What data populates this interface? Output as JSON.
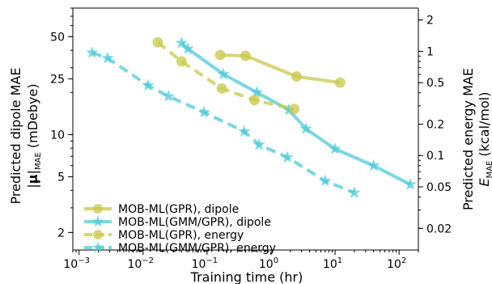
{
  "chart_data": {
    "type": "line",
    "xscale": "log",
    "yscale": "log",
    "xlim": [
      0.0008,
      200
    ],
    "ylim": [
      1.5,
      80
    ],
    "y2lim": [
      0.0124,
      2.6
    ],
    "xlabel": "Training time (hr)",
    "ylabel_line1": "Predicted dipole MAE",
    "ylabel_line2_prefix": "|",
    "ylabel_line2_mu": "μ",
    "ylabel_line2_mid": "|",
    "ylabel_line2_sub": "MAE",
    "ylabel_line2_suffix": " (mDebye)",
    "y2label_line1": "Predicted energy MAE",
    "y2label_line2_E": "E",
    "y2label_line2_sub": "MAE",
    "y2label_line2_suffix": " (kcal/mol)",
    "xticks": [
      {
        "value": 0.001,
        "base": "10",
        "exp": "−3"
      },
      {
        "value": 0.01,
        "base": "10",
        "exp": "−2"
      },
      {
        "value": 0.1,
        "base": "10",
        "exp": "−1"
      },
      {
        "value": 1,
        "base": "10",
        "exp": "0"
      },
      {
        "value": 10,
        "base": "10",
        "exp": "1"
      },
      {
        "value": 100,
        "base": "10",
        "exp": "2"
      }
    ],
    "yticks": [
      {
        "value": 2,
        "label": "2"
      },
      {
        "value": 5,
        "label": "5"
      },
      {
        "value": 10,
        "label": "10"
      },
      {
        "value": 25,
        "label": "25"
      },
      {
        "value": 50,
        "label": "50"
      }
    ],
    "y2ticks": [
      {
        "value": 0.02,
        "label": "0.02"
      },
      {
        "value": 0.05,
        "label": "0.05"
      },
      {
        "value": 0.1,
        "label": "0.1"
      },
      {
        "value": 0.2,
        "label": "0.2"
      },
      {
        "value": 0.5,
        "label": "0.5"
      },
      {
        "value": 1,
        "label": "1"
      },
      {
        "value": 2,
        "label": "2"
      }
    ],
    "legend_position": "lower-left",
    "series": [
      {
        "name": "MOB-ML(GPR), dipole",
        "axis": "left",
        "color": "#c8c84a",
        "marker": "circle",
        "line": "solid",
        "x": [
          0.16,
          0.4,
          2.5,
          12
        ],
        "y": [
          37,
          36.5,
          26,
          23.5
        ]
      },
      {
        "name": "MOB-ML(GMM/GPR), dipole",
        "axis": "left",
        "color": "#4ecbd8",
        "marker": "star",
        "line": "solid",
        "x": [
          0.04,
          0.05,
          0.18,
          0.6,
          1.9,
          3.5,
          10,
          40,
          150
        ],
        "y": [
          45,
          41,
          27,
          20,
          15,
          11,
          7.9,
          6.0,
          4.4
        ]
      },
      {
        "name": "MOB-ML(GPR), energy",
        "axis": "right",
        "color": "#c8c84a",
        "marker": "circle",
        "line": "dashed",
        "x": [
          0.017,
          0.04,
          0.17,
          0.55,
          2.3
        ],
        "y": [
          1.22,
          0.8,
          0.44,
          0.34,
          0.28
        ]
      },
      {
        "name": "MOB-ML(GMM/GPR), energy",
        "axis": "right",
        "color": "#4ecbd8",
        "marker": "star",
        "line": "dashed",
        "x": [
          0.0016,
          0.0028,
          0.012,
          0.025,
          0.09,
          0.38,
          0.65,
          1.8,
          7,
          20
        ],
        "y": [
          0.97,
          0.86,
          0.47,
          0.37,
          0.26,
          0.17,
          0.127,
          0.096,
          0.057,
          0.044
        ]
      }
    ]
  }
}
